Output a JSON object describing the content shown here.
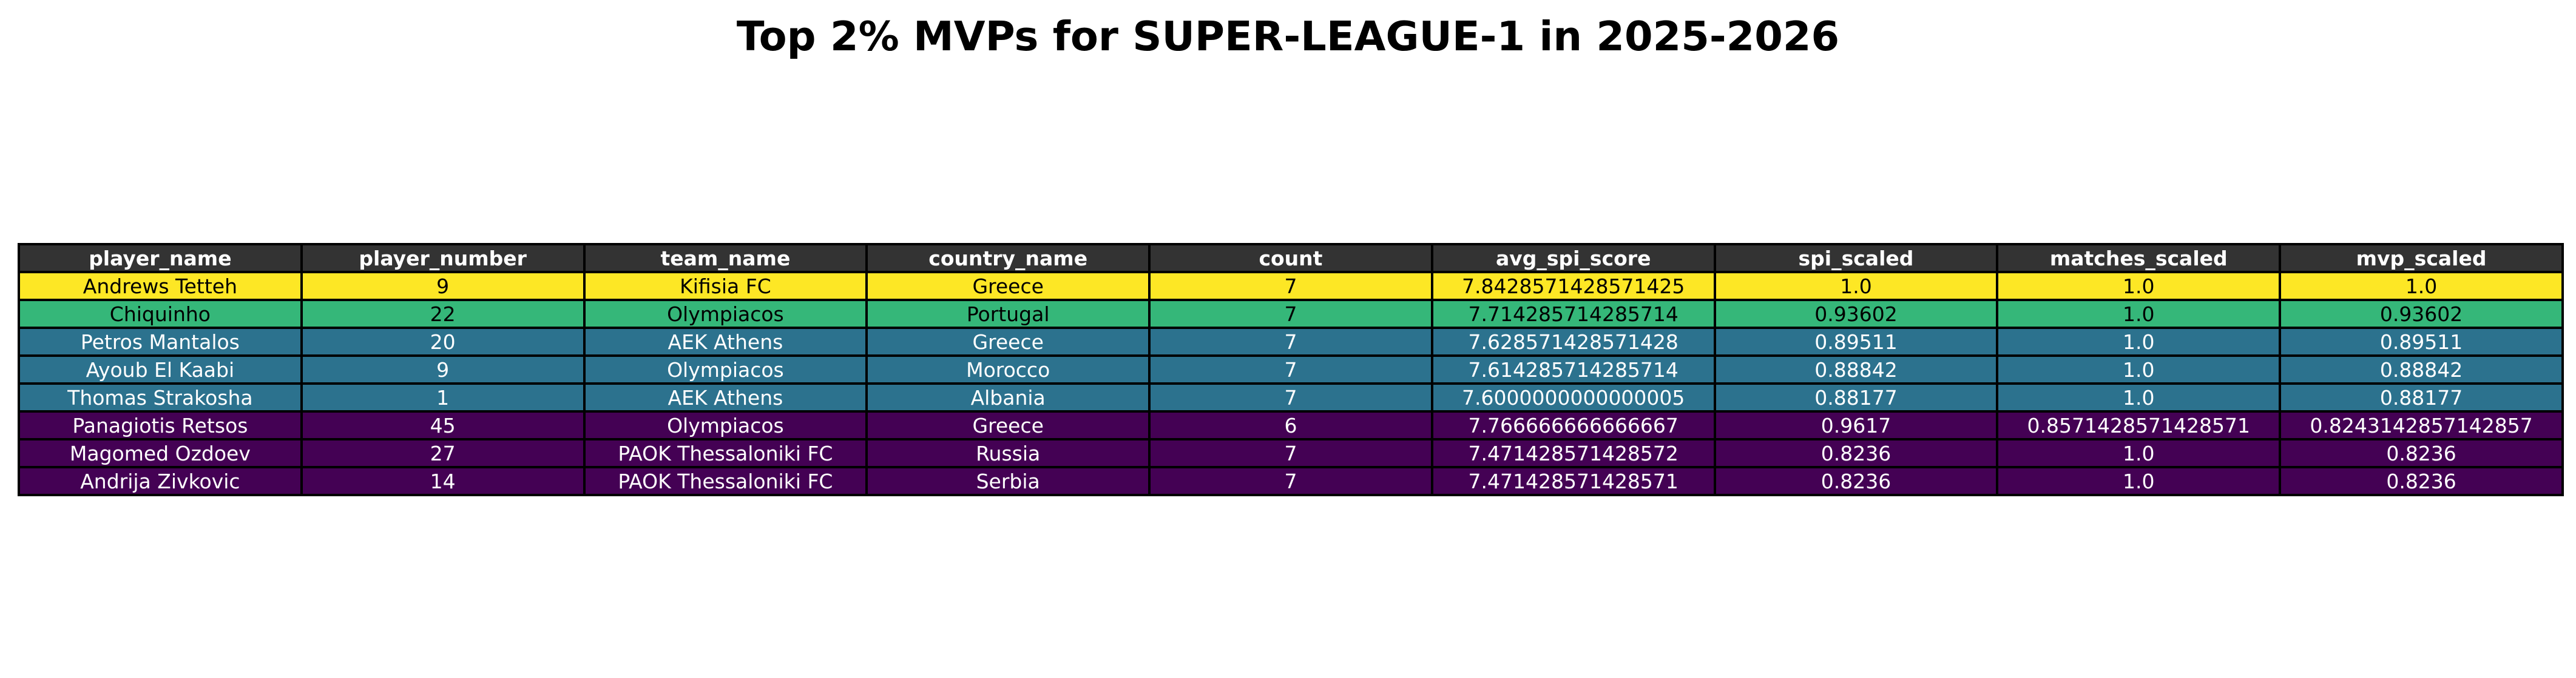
{
  "chart_data": {
    "type": "table",
    "title": "Top 2% MVPs for SUPER-LEAGUE-1 in 2025-2026",
    "columns": [
      "player_name",
      "player_number",
      "team_name",
      "country_name",
      "count",
      "avg_spi_score",
      "spi_scaled",
      "matches_scaled",
      "mvp_scaled"
    ],
    "header_color": "#333333",
    "rows": [
      {
        "cells": [
          "Andrews Tetteh",
          "9",
          "Kifisia FC",
          "Greece",
          "7",
          "7.8428571428571425",
          "1.0",
          "1.0",
          "1.0"
        ],
        "bg": "#fde725",
        "fg": "#000000"
      },
      {
        "cells": [
          "Chiquinho",
          "22",
          "Olympiacos",
          "Portugal",
          "7",
          "7.714285714285714",
          "0.93602",
          "1.0",
          "0.93602"
        ],
        "bg": "#35b779",
        "fg": "#000000"
      },
      {
        "cells": [
          "Petros Mantalos",
          "20",
          "AEK Athens",
          "Greece",
          "7",
          "7.628571428571428",
          "0.89511",
          "1.0",
          "0.89511"
        ],
        "bg": "#2c728e",
        "fg": "#ffffff"
      },
      {
        "cells": [
          "Ayoub El Kaabi",
          "9",
          "Olympiacos",
          "Morocco",
          "7",
          "7.614285714285714",
          "0.88842",
          "1.0",
          "0.88842"
        ],
        "bg": "#2c728e",
        "fg": "#ffffff"
      },
      {
        "cells": [
          "Thomas Strakosha",
          "1",
          "AEK Athens",
          "Albania",
          "7",
          "7.6000000000000005",
          "0.88177",
          "1.0",
          "0.88177"
        ],
        "bg": "#2c728e",
        "fg": "#ffffff"
      },
      {
        "cells": [
          "Panagiotis Retsos",
          "45",
          "Olympiacos",
          "Greece",
          "6",
          "7.766666666666667",
          "0.9617",
          "0.8571428571428571",
          "0.8243142857142857"
        ],
        "bg": "#440154",
        "fg": "#ffffff"
      },
      {
        "cells": [
          "Magomed Ozdoev",
          "27",
          "PAOK Thessaloniki FC",
          "Russia",
          "7",
          "7.471428571428572",
          "0.8236",
          "1.0",
          "0.8236"
        ],
        "bg": "#440154",
        "fg": "#ffffff"
      },
      {
        "cells": [
          "Andrija Zivkovic",
          "14",
          "PAOK Thessaloniki FC",
          "Serbia",
          "7",
          "7.471428571428571",
          "0.8236",
          "1.0",
          "0.8236"
        ],
        "bg": "#440154",
        "fg": "#ffffff"
      }
    ]
  }
}
